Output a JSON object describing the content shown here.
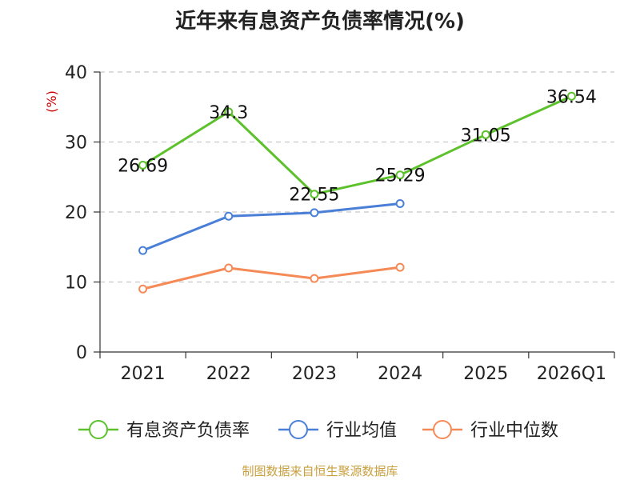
{
  "title": "近年来有息资产负债率情况(%)",
  "source": "制图数据来自恒生聚源数据库",
  "chart_data": {
    "type": "line",
    "title": "近年来有息资产负债率情况(%)",
    "ylabel": "(%)",
    "xlabel": "",
    "ylim": [
      0,
      40
    ],
    "yticks": [
      0,
      10,
      20,
      30,
      40
    ],
    "categories": [
      "2021",
      "2022",
      "2023",
      "2024",
      "2025",
      "2026Q1"
    ],
    "series": [
      {
        "name": "有息资产负债率",
        "color": "#5cc12b",
        "values": [
          26.69,
          34.3,
          22.55,
          25.29,
          31.05,
          36.54
        ],
        "labels": [
          "26.69",
          "34.3",
          "22.55",
          "25.29",
          "31.05",
          "36.54"
        ]
      },
      {
        "name": "行业均值",
        "color": "#4a7fd8",
        "values": [
          14.5,
          19.4,
          19.9,
          21.2,
          null,
          null
        ]
      },
      {
        "name": "行业中位数",
        "color": "#f58a57",
        "values": [
          9.0,
          12.0,
          10.5,
          12.1,
          null,
          null
        ]
      }
    ],
    "legend_position": "bottom"
  }
}
